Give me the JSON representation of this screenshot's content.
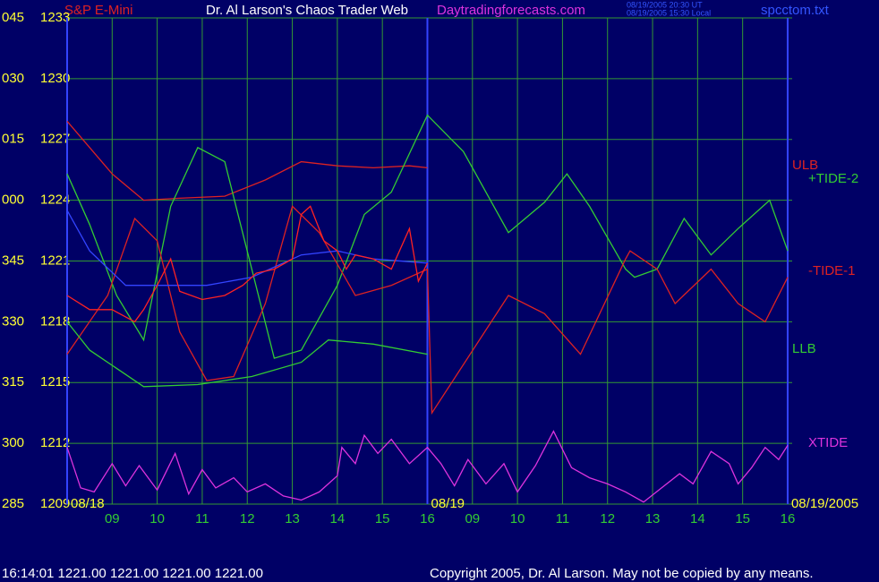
{
  "chart_data": {
    "type": "line",
    "title": "Dr. Al Larson's Chaos Trader Web",
    "site": "Daytradingforecasts.com",
    "instrument": "S&P E-Mini",
    "time_ut": "08/19/2005 20:30 UT",
    "time_local": "08/19/2005 15:30 Local",
    "file": "spcctom.txt",
    "status": "16:14:01  1221.00 1221.00 1221.00 1221.00",
    "copyright": "Copyright 2005, Dr. Al Larson. May not be copied by any means.",
    "ylim": [
      1209,
      1233
    ],
    "yticks": [
      1209,
      1212,
      1215,
      1218,
      1221,
      1224,
      1227,
      1230,
      1233
    ],
    "ytick_codes": [
      "285",
      "300",
      "315",
      "330",
      "345",
      "000",
      "015",
      "030",
      "045"
    ],
    "xlim": [
      0,
      16.1
    ],
    "xticks": [
      {
        "value": 1,
        "label": "09"
      },
      {
        "value": 2,
        "label": "10"
      },
      {
        "value": 3,
        "label": "11"
      },
      {
        "value": 4,
        "label": "12"
      },
      {
        "value": 5,
        "label": "13"
      },
      {
        "value": 6,
        "label": "14"
      },
      {
        "value": 7,
        "label": "15"
      },
      {
        "value": 8,
        "label": "16"
      },
      {
        "value": 9,
        "label": "09"
      },
      {
        "value": 10,
        "label": "10"
      },
      {
        "value": 11,
        "label": "11"
      },
      {
        "value": 12,
        "label": "12"
      },
      {
        "value": 13,
        "label": "13"
      },
      {
        "value": 14,
        "label": "14"
      },
      {
        "value": 15,
        "label": "15"
      },
      {
        "value": 16,
        "label": "16"
      }
    ],
    "date_labels": [
      {
        "value": 0,
        "label": "08/18"
      },
      {
        "value": 8,
        "label": "08/19"
      },
      {
        "value": 16,
        "label": "08/19/2005"
      }
    ],
    "grid": true,
    "series": [
      {
        "name": "ULB",
        "color": "#dd2222",
        "x": [
          0,
          0.5,
          1.0,
          1.7,
          2.5,
          3.5,
          4.4,
          5.2,
          6.0,
          6.8,
          7.6,
          8.0
        ],
        "values": [
          1227.9,
          1226.6,
          1225.3,
          1224.0,
          1224.1,
          1224.2,
          1225.0,
          1225.9,
          1225.7,
          1225.6,
          1225.7,
          1225.6
        ]
      },
      {
        "name": "+TIDE-2",
        "color": "#33cc33",
        "x": [
          0,
          0.5,
          1.1,
          1.7,
          2.3,
          2.9,
          3.5,
          4.1,
          4.6,
          5.2,
          6.0,
          6.6,
          7.2,
          8.0,
          8.8,
          9.8,
          10.6,
          11.1,
          11.6,
          12.4,
          12.6,
          13.1,
          13.7,
          14.3,
          14.9,
          15.6,
          16.0
        ],
        "values": [
          1225.3,
          1222.8,
          1219.3,
          1217.1,
          1223.7,
          1226.6,
          1225.9,
          1220.6,
          1216.2,
          1216.6,
          1219.8,
          1223.3,
          1224.4,
          1228.2,
          1226.4,
          1222.4,
          1223.9,
          1225.3,
          1223.7,
          1220.6,
          1220.2,
          1220.6,
          1223.1,
          1221.3,
          1222.6,
          1224.0,
          1221.5
        ]
      },
      {
        "name": "-TIDE-1",
        "color": "#dd2222",
        "x": [
          0,
          0.9,
          1.5,
          2.0,
          2.5,
          3.1,
          3.7,
          4.4,
          5.0,
          5.6,
          6.4,
          7.2,
          8.0,
          8.1,
          9.8,
          10.6,
          11.4,
          12.4,
          12.5,
          13.1,
          13.5,
          14.3,
          14.9,
          15.5,
          16.0
        ],
        "values": [
          1216.4,
          1219.3,
          1223.1,
          1222.0,
          1217.5,
          1215.1,
          1215.3,
          1218.9,
          1223.7,
          1222.4,
          1219.3,
          1219.8,
          1220.6,
          1213.5,
          1219.3,
          1218.4,
          1216.4,
          1221.1,
          1221.5,
          1220.6,
          1218.9,
          1220.6,
          1218.9,
          1218.0,
          1220.2
        ]
      },
      {
        "name": "LLB",
        "color": "#33cc33",
        "x": [
          0,
          0.5,
          1.7,
          2.9,
          4.1,
          5.2,
          5.8,
          6.8,
          8.0
        ],
        "values": [
          1218.0,
          1216.6,
          1214.8,
          1214.9,
          1215.3,
          1216.0,
          1217.1,
          1216.9,
          1216.4
        ]
      },
      {
        "name": "XTIDE",
        "color": "#dd33dd",
        "x": [
          0,
          0.3,
          0.6,
          1.0,
          1.3,
          1.6,
          2.0,
          2.4,
          2.7,
          3.0,
          3.3,
          3.7,
          4.0,
          4.4,
          4.8,
          5.2,
          5.6,
          6.0,
          6.1,
          6.4,
          6.6,
          6.9,
          7.2,
          7.6,
          8.0,
          8.3,
          8.6,
          8.9,
          9.3,
          9.7,
          10.0,
          10.4,
          10.8,
          11.2,
          11.6,
          12.0,
          12.4,
          12.8,
          13.2,
          13.6,
          13.9,
          14.3,
          14.7,
          14.9,
          15.2,
          15.5,
          15.8,
          16.0
        ],
        "values": [
          1211.8,
          1209.8,
          1209.6,
          1211.0,
          1209.9,
          1210.9,
          1209.7,
          1211.5,
          1209.5,
          1210.7,
          1209.8,
          1210.3,
          1209.6,
          1210.0,
          1209.4,
          1209.2,
          1209.6,
          1210.4,
          1211.8,
          1211.0,
          1212.4,
          1211.5,
          1212.2,
          1211.0,
          1211.8,
          1211.0,
          1209.9,
          1211.2,
          1210.0,
          1211.0,
          1209.6,
          1210.9,
          1212.6,
          1210.8,
          1210.3,
          1210.0,
          1209.6,
          1209.1,
          1209.8,
          1210.5,
          1210.0,
          1211.6,
          1211.0,
          1210.0,
          1210.8,
          1211.8,
          1211.2,
          1211.9
        ]
      },
      {
        "color": "#3344ff",
        "x": [
          0,
          0.5,
          1.3,
          2.0,
          3.1,
          4.1,
          5.2,
          6.0,
          6.8,
          8.0
        ],
        "values": [
          1223.5,
          1221.5,
          1219.8,
          1219.8,
          1219.8,
          1220.2,
          1221.3,
          1221.5,
          1221.1,
          1220.9
        ]
      },
      {
        "color": "#ff2222",
        "x": [
          0,
          0.5,
          1.0,
          1.5,
          1.7,
          2.0,
          2.3,
          2.5,
          3.0,
          3.5,
          3.9,
          4.2,
          4.6,
          5.0,
          5.2,
          5.4,
          5.7,
          6.0,
          6.2,
          6.4,
          6.8,
          7.2,
          7.6,
          7.8,
          8.0
        ],
        "values": [
          1219.3,
          1218.6,
          1218.6,
          1218.0,
          1218.6,
          1219.8,
          1221.1,
          1219.5,
          1219.1,
          1219.3,
          1219.8,
          1220.4,
          1220.6,
          1221.1,
          1223.3,
          1223.7,
          1222.0,
          1221.5,
          1220.6,
          1221.3,
          1221.1,
          1220.6,
          1222.6,
          1220.0,
          1220.9
        ]
      }
    ]
  }
}
